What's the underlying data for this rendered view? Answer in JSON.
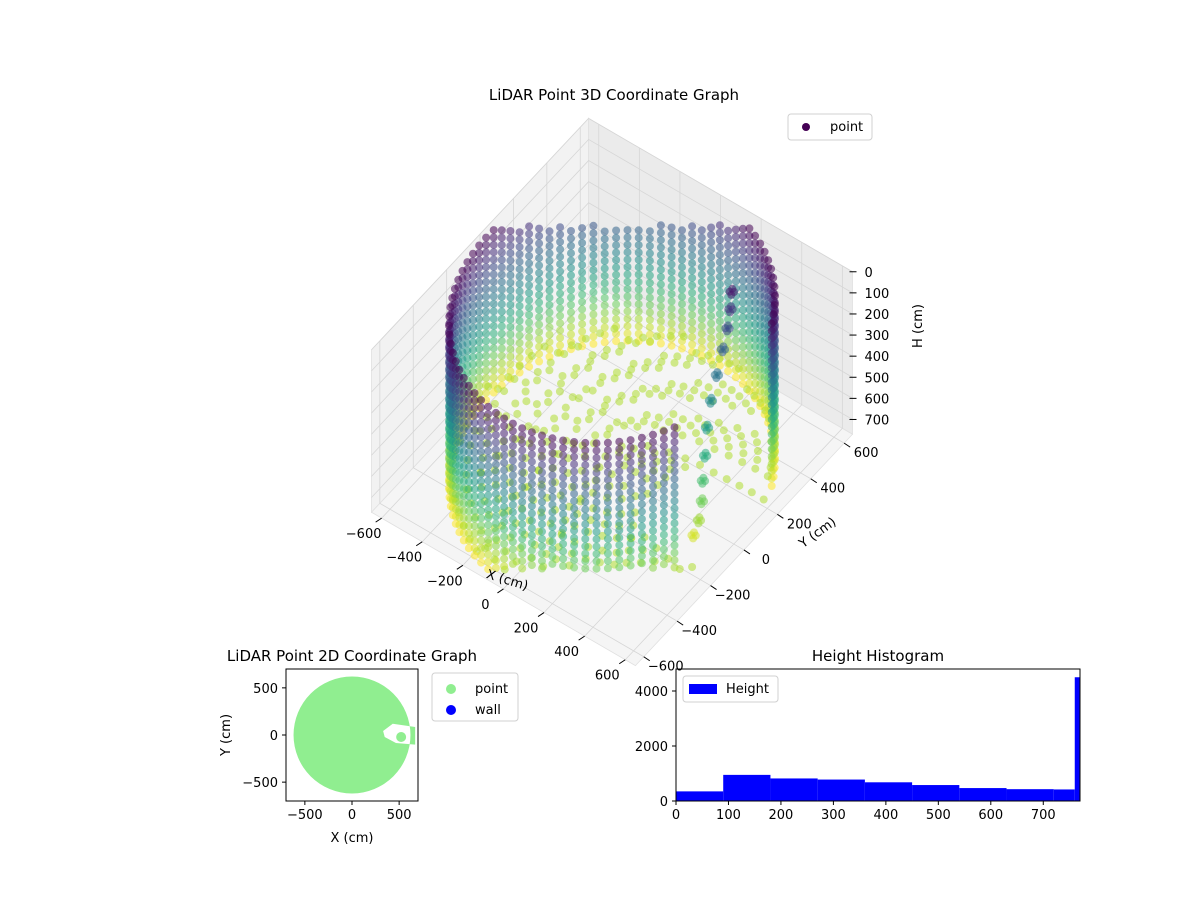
{
  "chart_data": [
    {
      "type": "scatter3d",
      "title": "LiDAR Point 3D Coordinate Graph",
      "xlabel": "X (cm)",
      "ylabel": "Y (cm)",
      "zlabel": "H (cm)",
      "x_ticks": [
        "−600",
        "−400",
        "−200",
        "0",
        "200",
        "400",
        "600"
      ],
      "y_ticks": [
        "−600",
        "−400",
        "−200",
        "0",
        "200",
        "400",
        "600"
      ],
      "z_ticks": [
        "0",
        "100",
        "200",
        "300",
        "400",
        "500",
        "600",
        "700"
      ],
      "xlim": [
        -650,
        650
      ],
      "ylim": [
        -650,
        650
      ],
      "zlim": [
        0,
        770
      ],
      "z_inverted": true,
      "legend": {
        "entries": [
          "point"
        ],
        "placement": "top-right",
        "marker_color": "#440154"
      },
      "colormap": "viridis",
      "series": [
        {
          "name": "point",
          "cylinder_wall": {
            "radius": 620,
            "h_min": 0,
            "h_max": 770,
            "angle_gap_deg": [
              -25,
              25
            ]
          },
          "post": {
            "points": [
              [
                280,
                380,
                60
              ],
              [
                290,
                360,
                120
              ],
              [
                300,
                330,
                180
              ],
              [
                310,
                290,
                240
              ],
              [
                330,
                230,
                300
              ],
              [
                350,
                170,
                360
              ],
              [
                380,
                110,
                420
              ],
              [
                420,
                50,
                480
              ],
              [
                450,
                0,
                540
              ],
              [
                470,
                -30,
                600
              ],
              [
                480,
                -60,
                660
              ],
              [
                470,
                -80,
                720
              ]
            ]
          },
          "floor_region": {
            "h": 770,
            "radius_min": 0,
            "radius_max": 620
          }
        }
      ]
    },
    {
      "type": "scatter",
      "title": "LiDAR Point 2D Coordinate Graph",
      "xlabel": "X (cm)",
      "ylabel": "Y (cm)",
      "x_ticks": [
        "−500",
        "0",
        "500"
      ],
      "y_ticks": [
        "500",
        "0",
        "−500"
      ],
      "xlim": [
        -700,
        700
      ],
      "ylim": [
        -700,
        700
      ],
      "legend": {
        "entries": [
          "point",
          "wall"
        ],
        "placement": "outside-right"
      },
      "series": [
        {
          "name": "point",
          "color": "#90ee90",
          "disc_radius": 620,
          "cutout_around": [
            500,
            0
          ],
          "cutout_radius": 170
        },
        {
          "name": "wall",
          "color": "#0000ff"
        }
      ]
    },
    {
      "type": "bar",
      "title": "Height Histogram",
      "xlabel": "",
      "ylabel": "",
      "x_ticks": [
        "0",
        "100",
        "200",
        "300",
        "400",
        "500",
        "600",
        "700"
      ],
      "y_ticks": [
        "0",
        "2000",
        "4000"
      ],
      "xlim": [
        0,
        770
      ],
      "ylim": [
        0,
        4800
      ],
      "legend": {
        "entries": [
          "Height"
        ],
        "placement": "top-left"
      },
      "series": [
        {
          "name": "Height",
          "color": "#0000ff",
          "bins": [
            {
              "x0": 0,
              "x1": 90,
              "value": 350
            },
            {
              "x0": 90,
              "x1": 180,
              "value": 950
            },
            {
              "x0": 180,
              "x1": 270,
              "value": 820
            },
            {
              "x0": 270,
              "x1": 360,
              "value": 780
            },
            {
              "x0": 360,
              "x1": 450,
              "value": 680
            },
            {
              "x0": 450,
              "x1": 540,
              "value": 580
            },
            {
              "x0": 540,
              "x1": 630,
              "value": 470
            },
            {
              "x0": 630,
              "x1": 720,
              "value": 430
            },
            {
              "x0": 720,
              "x1": 760,
              "value": 420
            },
            {
              "x0": 760,
              "x1": 770,
              "value": 4500
            }
          ]
        }
      ]
    }
  ]
}
